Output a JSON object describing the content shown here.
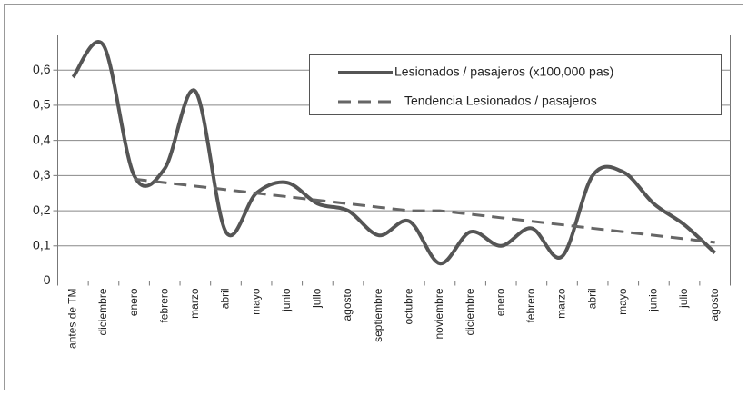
{
  "chart_data": {
    "type": "line",
    "categories": [
      "antes de TM",
      "diciembre",
      "enero",
      "febrero",
      "marzo",
      "abril",
      "mayo",
      "junio",
      "julio",
      "agosto",
      "septiembre",
      "octubre",
      "noviembre",
      "diciembre",
      "enero",
      "febrero",
      "marzo",
      "abril",
      "mayo",
      "junio",
      "julio",
      "agosto"
    ],
    "series": [
      {
        "name": "Lesionados / pasajeros (x100,000 pas)",
        "color": "#555555",
        "dashed": false,
        "values": [
          0.58,
          0.67,
          0.3,
          0.32,
          0.54,
          0.14,
          0.25,
          0.28,
          0.22,
          0.2,
          0.13,
          0.17,
          0.05,
          0.14,
          0.1,
          0.15,
          0.07,
          0.3,
          0.31,
          0.22,
          0.16,
          0.08
        ]
      },
      {
        "name": "Tendencia Lesionados / pasajeros",
        "color": "#666666",
        "dashed": true,
        "values": [
          null,
          null,
          0.29,
          0.28,
          0.27,
          0.26,
          0.25,
          0.24,
          0.23,
          0.22,
          0.21,
          0.2,
          0.2,
          0.19,
          0.18,
          0.17,
          0.16,
          0.15,
          0.14,
          0.13,
          0.12,
          0.11
        ]
      }
    ],
    "ylim": [
      0,
      0.7
    ],
    "yticks": [
      0,
      {
        "value": 0.1,
        "label": "0,1"
      },
      {
        "value": 0.2,
        "label": "0,2"
      },
      {
        "value": 0.3,
        "label": "0,3"
      },
      {
        "value": 0.4,
        "label": "0,4"
      },
      {
        "value": 0.5,
        "label": "0,5"
      },
      {
        "value": 0.6,
        "label": "0,6"
      }
    ],
    "grid": true,
    "legend": "top-right"
  }
}
